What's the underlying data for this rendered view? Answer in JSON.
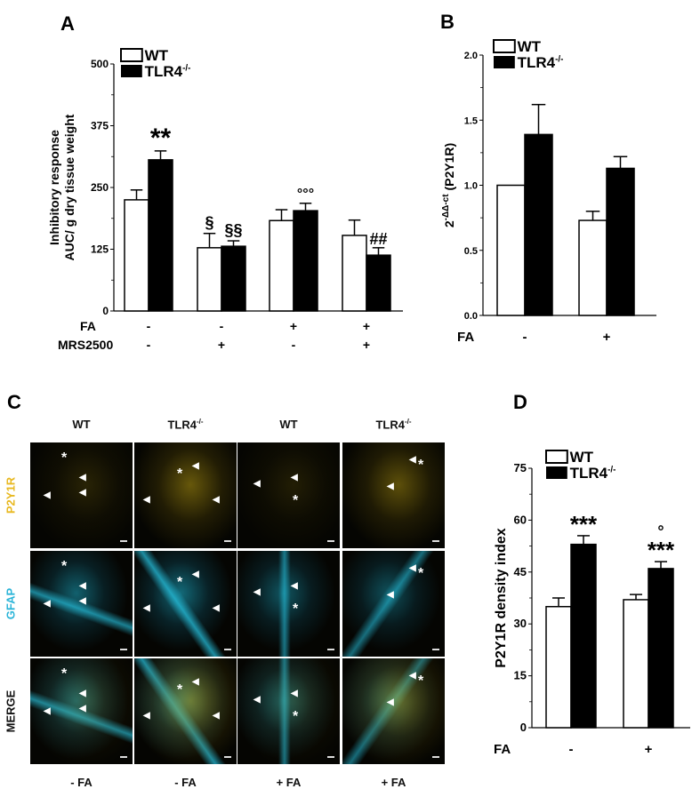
{
  "panels": {
    "A": {
      "letter": "A"
    },
    "B": {
      "letter": "B"
    },
    "C": {
      "letter": "C"
    },
    "D": {
      "letter": "D"
    }
  },
  "legend": {
    "wt": "WT",
    "tlr4": "TLR4",
    "tlr4_sup": "-/-"
  },
  "panel_c": {
    "columns": [
      "WT",
      "TLR4",
      "WT",
      "TLR4"
    ],
    "column_sup": [
      "",
      "-/-",
      "",
      "-/-"
    ],
    "rows": [
      "P2Y1R",
      "GFAP",
      "MERGE"
    ],
    "row_colors": [
      "#e8b820",
      "#2ab4d8",
      "#111111"
    ],
    "bottom_labels": [
      "- FA",
      "- FA",
      "+ FA",
      "+ FA"
    ]
  },
  "chart_data": [
    {
      "panel": "A",
      "type": "bar",
      "title": "",
      "ylabel": "Inhibitory response AUC/ g dry tissue weight",
      "xlabel": "",
      "ylim": [
        0,
        500
      ],
      "yticks": [
        0,
        125,
        250,
        375,
        500
      ],
      "conditions": {
        "FA": [
          "-",
          "-",
          "+",
          "+"
        ],
        "MRS2500": [
          "-",
          "+",
          "-",
          "+"
        ]
      },
      "categories": [
        "FA- / MRS2500-",
        "FA- / MRS2500+",
        "FA+ / MRS2500-",
        "FA+ / MRS2500+"
      ],
      "series": [
        {
          "name": "WT",
          "color": "#ffffff",
          "values": [
            225,
            128,
            183,
            153
          ],
          "error": [
            20,
            29,
            22,
            31
          ]
        },
        {
          "name": "TLR4-/-",
          "color": "#000000",
          "values": [
            306,
            131,
            203,
            113
          ],
          "error": [
            18,
            11,
            15,
            15
          ]
        }
      ],
      "annotations": [
        {
          "series": "TLR4-/-",
          "index": 0,
          "text": "**"
        },
        {
          "series": "WT",
          "index": 1,
          "text": "§"
        },
        {
          "series": "TLR4-/-",
          "index": 1,
          "text": "§§"
        },
        {
          "series": "TLR4-/-",
          "index": 2,
          "text": "°°°"
        },
        {
          "series": "TLR4-/-",
          "index": 3,
          "text": "##"
        }
      ],
      "legend_position": "top-left"
    },
    {
      "panel": "B",
      "type": "bar",
      "title": "",
      "ylabel": "2-ΔΔ-ct (P2Y1R)",
      "xlabel": "",
      "ylim": [
        0,
        2.0
      ],
      "yticks": [
        0.0,
        0.5,
        1.0,
        1.5,
        2.0
      ],
      "conditions": {
        "FA": [
          "-",
          "+"
        ]
      },
      "categories": [
        "FA -",
        "FA +"
      ],
      "series": [
        {
          "name": "WT",
          "color": "#ffffff",
          "values": [
            1.0,
            0.73
          ],
          "error": [
            0.0,
            0.07
          ]
        },
        {
          "name": "TLR4-/-",
          "color": "#000000",
          "values": [
            1.39,
            1.13
          ],
          "error": [
            0.23,
            0.09
          ]
        }
      ],
      "annotations": [],
      "legend_position": "top-left"
    },
    {
      "panel": "D",
      "type": "bar",
      "title": "",
      "ylabel": "P2Y1R density index",
      "xlabel": "",
      "ylim": [
        0,
        75
      ],
      "yticks": [
        0,
        15,
        30,
        45,
        60,
        75
      ],
      "conditions": {
        "FA": [
          "-",
          "+"
        ]
      },
      "categories": [
        "FA -",
        "FA +"
      ],
      "series": [
        {
          "name": "WT",
          "color": "#ffffff",
          "values": [
            35,
            37
          ],
          "error": [
            2.5,
            1.5
          ]
        },
        {
          "name": "TLR4-/-",
          "color": "#000000",
          "values": [
            53,
            46
          ],
          "error": [
            2.5,
            2.0
          ]
        }
      ],
      "annotations": [
        {
          "series": "TLR4-/-",
          "index": 0,
          "text": "***"
        },
        {
          "series": "TLR4-/-",
          "index": 1,
          "text": "***"
        },
        {
          "series": "TLR4-/-",
          "index": 1,
          "text": "°"
        }
      ],
      "legend_position": "top-left"
    }
  ]
}
